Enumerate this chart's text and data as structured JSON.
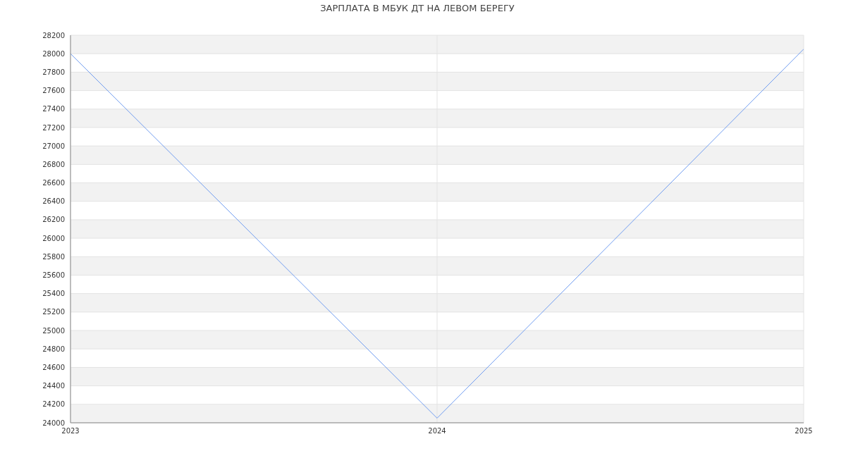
{
  "chart_data": {
    "type": "line",
    "title": "ЗАРПЛАТА В МБУК ДТ НА ЛЕВОМ БЕРЕГУ",
    "x": [
      2023,
      2024,
      2025
    ],
    "xlim": [
      2023,
      2025
    ],
    "xticks": [
      2023,
      2024,
      2025
    ],
    "series": [
      {
        "color": "#6f9cf0",
        "values": [
          28000,
          24050,
          28050
        ]
      }
    ],
    "ylim": [
      24000,
      28200
    ],
    "yticks": [
      24000,
      24200,
      24400,
      24600,
      24800,
      25000,
      25200,
      25400,
      25600,
      25800,
      26000,
      26200,
      26400,
      26600,
      26800,
      27000,
      27200,
      27400,
      27600,
      27800,
      28000,
      28200
    ],
    "grid": true,
    "legend": false,
    "marker": "none",
    "line_style": "solid"
  }
}
